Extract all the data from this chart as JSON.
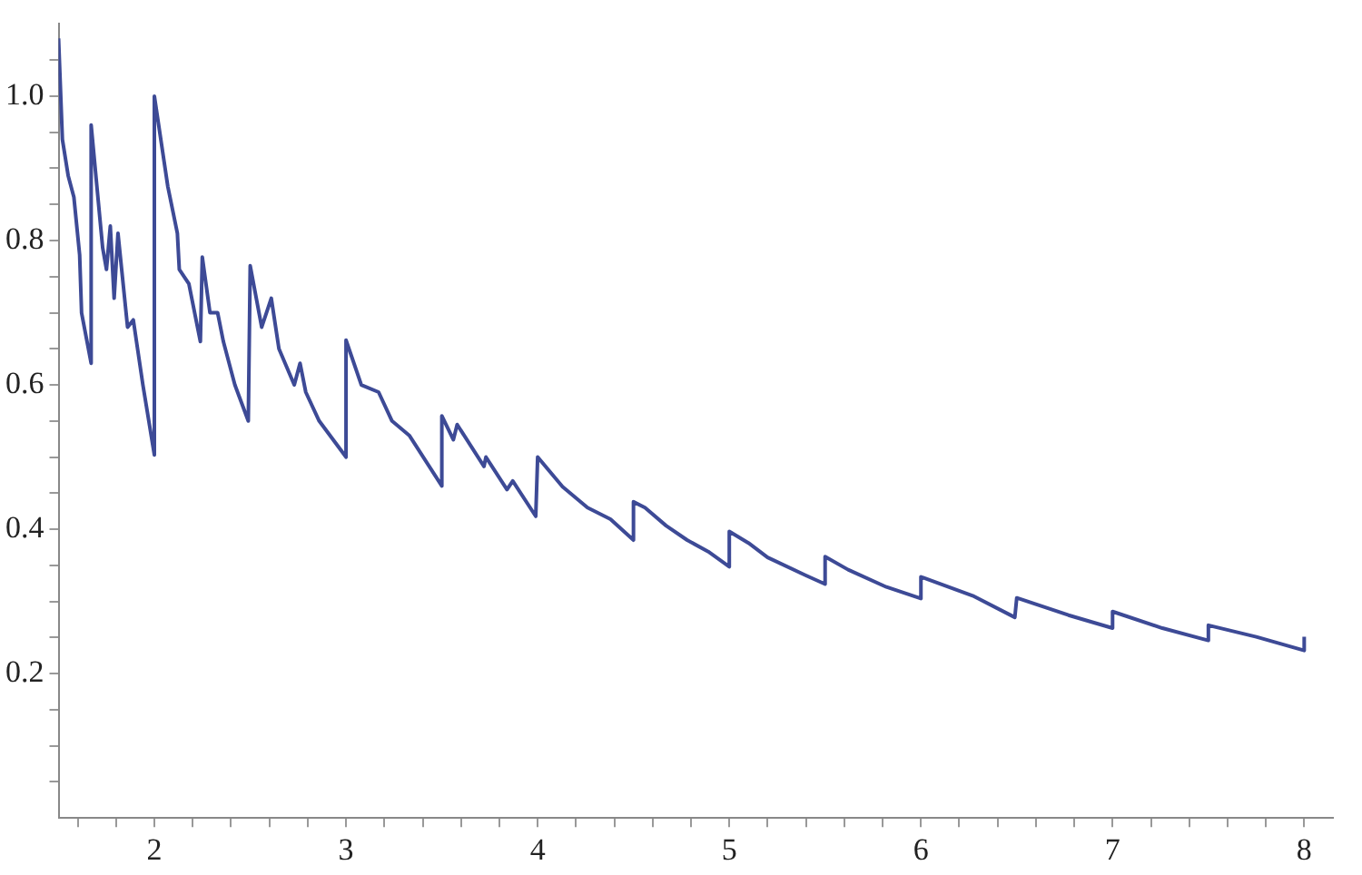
{
  "chart_data": {
    "type": "line",
    "x": [
      1.5,
      1.52,
      1.55,
      1.58,
      1.61,
      1.62,
      1.67,
      1.67,
      1.7,
      1.73,
      1.75,
      1.77,
      1.79,
      1.81,
      1.86,
      1.89,
      1.94,
      2.0,
      2.0,
      2.07,
      2.12,
      2.13,
      2.18,
      2.24,
      2.25,
      2.29,
      2.33,
      2.36,
      2.42,
      2.49,
      2.5,
      2.56,
      2.61,
      2.65,
      2.73,
      2.76,
      2.79,
      2.86,
      3.0,
      3.0,
      3.08,
      3.17,
      3.24,
      3.33,
      3.5,
      3.5,
      3.56,
      3.58,
      3.72,
      3.73,
      3.84,
      3.87,
      3.99,
      4.0,
      4.13,
      4.26,
      4.38,
      4.5,
      4.5,
      4.56,
      4.67,
      4.78,
      4.89,
      5.0,
      5.0,
      5.1,
      5.2,
      5.4,
      5.5,
      5.5,
      5.62,
      5.82,
      6.0,
      6.0,
      6.27,
      6.49,
      6.5,
      6.77,
      7.0,
      7.0,
      7.26,
      7.5,
      7.5,
      7.75,
      8.0,
      8.0
    ],
    "series": [
      {
        "color": "#3d4a96",
        "values": [
          1.08,
          0.94,
          0.89,
          0.86,
          0.78,
          0.7,
          0.63,
          0.96,
          0.875,
          0.79,
          0.76,
          0.82,
          0.72,
          0.81,
          0.68,
          0.69,
          0.6,
          0.503,
          1.0,
          0.875,
          0.81,
          0.76,
          0.74,
          0.66,
          0.777,
          0.7,
          0.7,
          0.66,
          0.6,
          0.55,
          0.765,
          0.68,
          0.72,
          0.65,
          0.6,
          0.63,
          0.59,
          0.55,
          0.5,
          0.662,
          0.6,
          0.59,
          0.55,
          0.53,
          0.46,
          0.557,
          0.524,
          0.545,
          0.487,
          0.5,
          0.455,
          0.467,
          0.418,
          0.5,
          0.459,
          0.43,
          0.414,
          0.385,
          0.438,
          0.43,
          0.405,
          0.385,
          0.369,
          0.348,
          0.397,
          0.381,
          0.361,
          0.336,
          0.324,
          0.362,
          0.344,
          0.32,
          0.304,
          0.334,
          0.308,
          0.278,
          0.305,
          0.281,
          0.263,
          0.286,
          0.263,
          0.246,
          0.267,
          0.251,
          0.232,
          0.251
        ]
      }
    ],
    "xlim": [
      1.5,
      8.15
    ],
    "xticks": [
      {
        "value": 1.6,
        "label": null
      },
      {
        "value": 1.8,
        "label": null
      },
      2,
      {
        "value": 2.2,
        "label": null
      },
      {
        "value": 2.4,
        "label": null
      },
      {
        "value": 2.6,
        "label": null
      },
      {
        "value": 2.8,
        "label": null
      },
      3,
      {
        "value": 3.2,
        "label": null
      },
      {
        "value": 3.4,
        "label": null
      },
      {
        "value": 3.6,
        "label": null
      },
      {
        "value": 3.8,
        "label": null
      },
      4,
      {
        "value": 4.2,
        "label": null
      },
      {
        "value": 4.4,
        "label": null
      },
      {
        "value": 4.6,
        "label": null
      },
      {
        "value": 4.8,
        "label": null
      },
      5,
      {
        "value": 5.2,
        "label": null
      },
      {
        "value": 5.4,
        "label": null
      },
      {
        "value": 5.6,
        "label": null
      },
      {
        "value": 5.8,
        "label": null
      },
      6,
      {
        "value": 6.2,
        "label": null
      },
      {
        "value": 6.4,
        "label": null
      },
      {
        "value": 6.6,
        "label": null
      },
      {
        "value": 6.8,
        "label": null
      },
      7,
      {
        "value": 7.2,
        "label": null
      },
      {
        "value": 7.4,
        "label": null
      },
      {
        "value": 7.6,
        "label": null
      },
      {
        "value": 7.8,
        "label": null
      },
      8
    ],
    "ylim": [
      0,
      1.1
    ],
    "yticks": [
      {
        "value": 0.05,
        "label": null
      },
      {
        "value": 0.1,
        "label": null
      },
      {
        "value": 0.15,
        "label": null
      },
      0.2,
      {
        "value": 0.25,
        "label": null
      },
      {
        "value": 0.3,
        "label": null
      },
      {
        "value": 0.35,
        "label": null
      },
      0.4,
      {
        "value": 0.45,
        "label": null
      },
      {
        "value": 0.5,
        "label": null
      },
      {
        "value": 0.55,
        "label": null
      },
      0.6,
      {
        "value": 0.65,
        "label": null
      },
      {
        "value": 0.7,
        "label": null
      },
      {
        "value": 0.75,
        "label": null
      },
      0.8,
      {
        "value": 0.85,
        "label": null
      },
      {
        "value": 0.9,
        "label": null
      },
      {
        "value": 0.95,
        "label": null
      },
      {
        "value": 1,
        "label": "1.0"
      },
      {
        "value": 1.05,
        "label": null
      }
    ],
    "grid": false,
    "legend": false,
    "marker": "none",
    "line_style": "solid"
  }
}
